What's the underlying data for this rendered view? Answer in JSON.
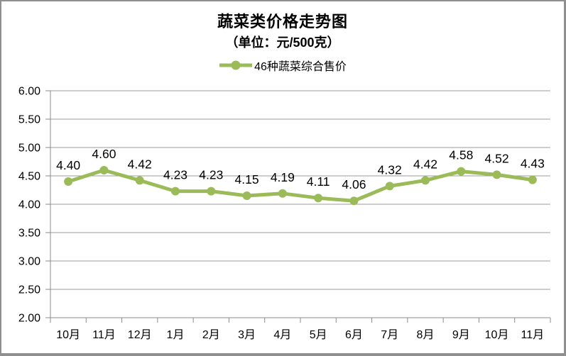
{
  "header": {
    "title": "蔬菜类价格走势图",
    "subtitle": "（单位：元/500克）"
  },
  "legend": {
    "label": "46种蔬菜综合售价"
  },
  "chart_data": {
    "type": "line",
    "categories": [
      "10月",
      "11月",
      "12月",
      "1月",
      "2月",
      "3月",
      "4月",
      "5月",
      "6月",
      "7月",
      "8月",
      "9月",
      "10月",
      "11月"
    ],
    "series": [
      {
        "name": "46种蔬菜综合售价",
        "values": [
          4.4,
          4.6,
          4.42,
          4.23,
          4.23,
          4.15,
          4.19,
          4.11,
          4.06,
          4.32,
          4.42,
          4.58,
          4.52,
          4.43
        ],
        "color": "#9bbb59"
      }
    ],
    "title": "蔬菜类价格走势图",
    "subtitle": "（单位：元/500克）",
    "xlabel": "",
    "ylabel": "",
    "ylim": [
      2.0,
      6.0
    ],
    "ytick_step": 0.5,
    "ytick_labels": [
      "2.00",
      "2.50",
      "3.00",
      "3.50",
      "4.00",
      "4.50",
      "5.00",
      "5.50",
      "6.00"
    ],
    "value_label_decimals": 2,
    "grid": true,
    "legend_position": "top",
    "data_labels_shown": true
  },
  "colors": {
    "series": "#9bbb59",
    "gridline": "#9b9b9b",
    "axis": "#8c8c8c",
    "text": "#000000",
    "border": "#8f8f8f",
    "background": "#ffffff"
  }
}
